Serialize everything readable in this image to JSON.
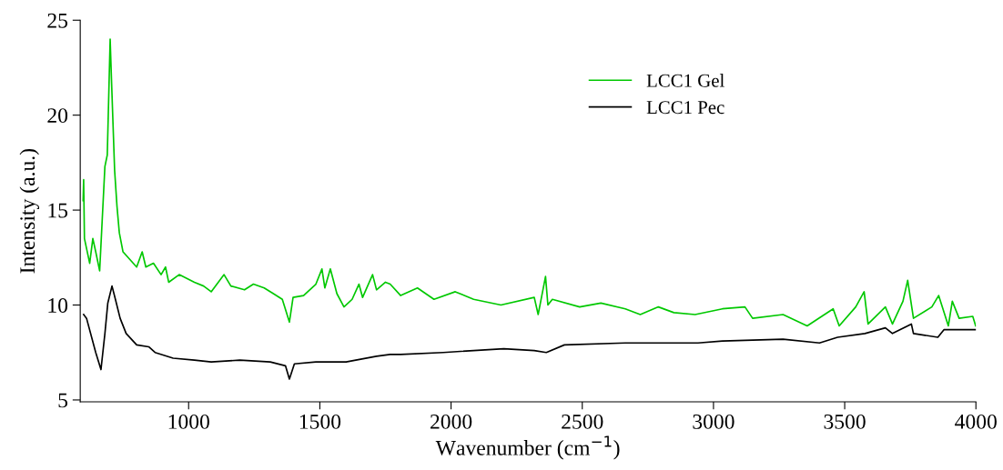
{
  "chart_data": {
    "type": "line",
    "xlabel": "Wavenumber (cm$^{−1}$)",
    "ylabel": "Intensity (a.u.)",
    "xlim": [
      587,
      4000
    ],
    "ylim": [
      4.9,
      25
    ],
    "xticks": [
      1000,
      1500,
      2000,
      2500,
      3000,
      3500,
      4000
    ],
    "yticks": [
      5,
      10,
      15,
      20,
      25
    ],
    "grid": false,
    "legend": "top",
    "marker": "none",
    "line_style": "solid",
    "series": [
      {
        "name": "LCC1 Gel",
        "color": "#00c800",
        "x": [
          598,
          600,
          603,
          623,
          635,
          646,
          661,
          681,
          690,
          701,
          706,
          718,
          727,
          736,
          750,
          802,
          823,
          837,
          866,
          895,
          912,
          924,
          964,
          1022,
          1057,
          1086,
          1135,
          1161,
          1213,
          1247,
          1288,
          1323,
          1357,
          1384,
          1398,
          1438,
          1485,
          1508,
          1519,
          1540,
          1565,
          1592,
          1623,
          1649,
          1663,
          1701,
          1716,
          1750,
          1768,
          1808,
          1872,
          1935,
          2016,
          2086,
          2190,
          2317,
          2332,
          2360,
          2369,
          2386,
          2490,
          2571,
          2664,
          2721,
          2790,
          2849,
          2930,
          3034,
          3120,
          3149,
          3265,
          3357,
          3456,
          3479,
          3542,
          3574,
          3589,
          3655,
          3682,
          3722,
          3740,
          3762,
          3832,
          3858,
          3895,
          3910,
          3936,
          3988,
          3999
        ],
        "values": [
          15.5,
          16.6,
          13.5,
          12.2,
          13.5,
          12.8,
          11.8,
          17.3,
          17.9,
          24.0,
          21.9,
          17.1,
          15.2,
          13.8,
          12.8,
          12.0,
          12.8,
          12.0,
          12.2,
          11.6,
          12.0,
          11.2,
          11.6,
          11.2,
          11.0,
          10.7,
          11.6,
          11.0,
          10.8,
          11.1,
          10.9,
          10.6,
          10.3,
          9.1,
          10.4,
          10.5,
          11.1,
          11.9,
          10.9,
          11.9,
          10.6,
          9.9,
          10.3,
          11.1,
          10.4,
          11.6,
          10.8,
          11.2,
          11.1,
          10.5,
          10.9,
          10.3,
          10.7,
          10.3,
          10.0,
          10.4,
          9.5,
          11.5,
          10.0,
          10.3,
          9.9,
          10.1,
          9.8,
          9.5,
          9.9,
          9.6,
          9.5,
          9.8,
          9.9,
          9.3,
          9.5,
          8.9,
          9.8,
          8.9,
          9.9,
          10.7,
          9.0,
          9.9,
          9.0,
          10.2,
          11.3,
          9.3,
          9.9,
          10.5,
          8.9,
          10.2,
          9.3,
          9.4,
          8.9
        ]
      },
      {
        "name": "LCC1 Pec",
        "color": "#000000",
        "x": [
          600,
          611,
          646,
          666,
          681,
          692,
          708,
          721,
          739,
          762,
          802,
          848,
          872,
          941,
          1022,
          1086,
          1195,
          1311,
          1369,
          1384,
          1403,
          1485,
          1600,
          1716,
          1768,
          1808,
          1970,
          2201,
          2317,
          2363,
          2432,
          2664,
          2941,
          3034,
          3265,
          3404,
          3473,
          3577,
          3655,
          3682,
          3754,
          3762,
          3855,
          3878,
          3999
        ],
        "values": [
          9.5,
          9.3,
          7.5,
          6.6,
          8.5,
          10.1,
          11.0,
          10.3,
          9.3,
          8.5,
          7.9,
          7.8,
          7.5,
          7.2,
          7.1,
          7.0,
          7.1,
          7.0,
          6.8,
          6.1,
          6.9,
          7.0,
          7.0,
          7.3,
          7.4,
          7.4,
          7.5,
          7.7,
          7.6,
          7.5,
          7.9,
          8.0,
          8.0,
          8.1,
          8.2,
          8.0,
          8.3,
          8.5,
          8.8,
          8.5,
          9.0,
          8.5,
          8.3,
          8.7,
          8.7
        ]
      }
    ]
  }
}
